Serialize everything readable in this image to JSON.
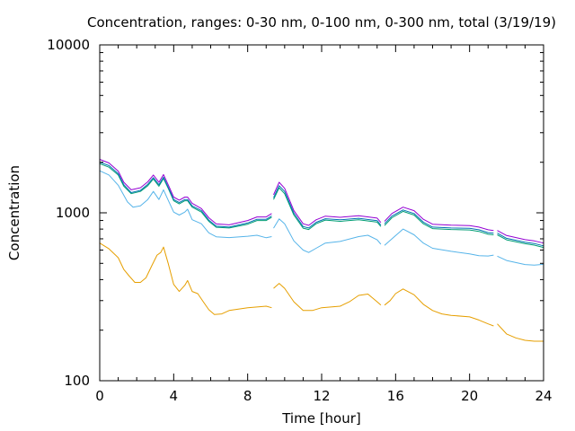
{
  "chart_data": {
    "type": "line",
    "title": "Concentration, ranges: 0-30 nm, 0-100 nm, 0-300 nm, total (3/19/19)",
    "xlabel": "Time [hour]",
    "ylabel": "Concentration",
    "xlim": [
      0,
      24
    ],
    "ylim": [
      100,
      10000
    ],
    "yscale": "log",
    "xticks": [
      0,
      4,
      8,
      12,
      16,
      20,
      24
    ],
    "yticks": [
      100,
      1000,
      10000
    ],
    "grid": false,
    "legend": "none",
    "series": [
      {
        "color": "#e69f00",
        "gaps_after_x": [
          9.3,
          15.2,
          21.3
        ],
        "points": [
          [
            0,
            660
          ],
          [
            0.5,
            610
          ],
          [
            1,
            540
          ],
          [
            1.3,
            460
          ],
          [
            1.6,
            420
          ],
          [
            1.9,
            385
          ],
          [
            2.2,
            385
          ],
          [
            2.5,
            410
          ],
          [
            2.8,
            480
          ],
          [
            3.1,
            560
          ],
          [
            3.3,
            580
          ],
          [
            3.45,
            625
          ],
          [
            3.7,
            500
          ],
          [
            4.0,
            375
          ],
          [
            4.3,
            340
          ],
          [
            4.6,
            370
          ],
          [
            4.75,
            395
          ],
          [
            5.0,
            340
          ],
          [
            5.3,
            330
          ],
          [
            5.6,
            295
          ],
          [
            5.9,
            265
          ],
          [
            6.2,
            248
          ],
          [
            6.6,
            250
          ],
          [
            7,
            262
          ],
          [
            8,
            272
          ],
          [
            9,
            278
          ],
          [
            9.3,
            272
          ],
          [
            9.4,
            355
          ],
          [
            9.7,
            380
          ],
          [
            10,
            355
          ],
          [
            10.5,
            295
          ],
          [
            11,
            262
          ],
          [
            11.5,
            262
          ],
          [
            12,
            272
          ],
          [
            13,
            278
          ],
          [
            13.5,
            295
          ],
          [
            14,
            322
          ],
          [
            14.5,
            328
          ],
          [
            15,
            295
          ],
          [
            15.2,
            282
          ],
          [
            15.4,
            282
          ],
          [
            15.7,
            300
          ],
          [
            16,
            330
          ],
          [
            16.4,
            352
          ],
          [
            17,
            325
          ],
          [
            17.5,
            285
          ],
          [
            18,
            262
          ],
          [
            18.5,
            250
          ],
          [
            19,
            245
          ],
          [
            20,
            240
          ],
          [
            20.5,
            230
          ],
          [
            21,
            218
          ],
          [
            21.3,
            212
          ],
          [
            21.5,
            218
          ],
          [
            22,
            190
          ],
          [
            22.5,
            180
          ],
          [
            23,
            174
          ],
          [
            23.5,
            172
          ],
          [
            24,
            172
          ]
        ]
      },
      {
        "color": "#56b4e9",
        "gaps_after_x": [
          9.3,
          15.2,
          21.3
        ],
        "points": [
          [
            0,
            1780
          ],
          [
            0.5,
            1680
          ],
          [
            1,
            1460
          ],
          [
            1.5,
            1160
          ],
          [
            1.8,
            1080
          ],
          [
            2.2,
            1100
          ],
          [
            2.6,
            1200
          ],
          [
            2.9,
            1340
          ],
          [
            3.2,
            1200
          ],
          [
            3.45,
            1370
          ],
          [
            3.7,
            1190
          ],
          [
            4.0,
            1010
          ],
          [
            4.3,
            970
          ],
          [
            4.6,
            1010
          ],
          [
            4.75,
            1050
          ],
          [
            5.0,
            910
          ],
          [
            5.5,
            860
          ],
          [
            5.9,
            760
          ],
          [
            6.3,
            720
          ],
          [
            7,
            712
          ],
          [
            8,
            725
          ],
          [
            8.5,
            735
          ],
          [
            9,
            710
          ],
          [
            9.3,
            722
          ],
          [
            9.4,
            810
          ],
          [
            9.7,
            920
          ],
          [
            10,
            860
          ],
          [
            10.5,
            680
          ],
          [
            11,
            600
          ],
          [
            11.3,
            580
          ],
          [
            11.7,
            615
          ],
          [
            12.2,
            660
          ],
          [
            13,
            675
          ],
          [
            14,
            722
          ],
          [
            14.5,
            735
          ],
          [
            15,
            690
          ],
          [
            15.2,
            650
          ],
          [
            15.4,
            640
          ],
          [
            15.8,
            700
          ],
          [
            16.4,
            800
          ],
          [
            17,
            740
          ],
          [
            17.5,
            660
          ],
          [
            18,
            615
          ],
          [
            19,
            590
          ],
          [
            20,
            570
          ],
          [
            20.5,
            555
          ],
          [
            21,
            553
          ],
          [
            21.3,
            560
          ],
          [
            21.5,
            552
          ],
          [
            22,
            520
          ],
          [
            23,
            492
          ],
          [
            23.5,
            488
          ],
          [
            24,
            493
          ]
        ]
      },
      {
        "color": "#009e73",
        "gaps_after_x": [
          9.3,
          15.2,
          21.3
        ],
        "points": [
          [
            0,
            1960
          ],
          [
            0.5,
            1870
          ],
          [
            1,
            1680
          ],
          [
            1.3,
            1440
          ],
          [
            1.7,
            1300
          ],
          [
            2.2,
            1340
          ],
          [
            2.6,
            1450
          ],
          [
            2.9,
            1590
          ],
          [
            3.2,
            1440
          ],
          [
            3.45,
            1600
          ],
          [
            3.7,
            1400
          ],
          [
            4.0,
            1180
          ],
          [
            4.3,
            1130
          ],
          [
            4.6,
            1180
          ],
          [
            4.75,
            1180
          ],
          [
            5.0,
            1080
          ],
          [
            5.5,
            1010
          ],
          [
            5.9,
            890
          ],
          [
            6.3,
            820
          ],
          [
            7,
            812
          ],
          [
            8,
            855
          ],
          [
            8.5,
            900
          ],
          [
            9,
            900
          ],
          [
            9.3,
            942
          ],
          [
            9.4,
            1200
          ],
          [
            9.7,
            1410
          ],
          [
            10,
            1300
          ],
          [
            10.5,
            970
          ],
          [
            11,
            810
          ],
          [
            11.3,
            795
          ],
          [
            11.7,
            860
          ],
          [
            12.2,
            905
          ],
          [
            13,
            890
          ],
          [
            14,
            910
          ],
          [
            15,
            880
          ],
          [
            15.2,
            828
          ],
          [
            15.4,
            840
          ],
          [
            15.8,
            935
          ],
          [
            16.4,
            1020
          ],
          [
            17,
            970
          ],
          [
            17.5,
            860
          ],
          [
            18,
            805
          ],
          [
            19,
            795
          ],
          [
            20,
            790
          ],
          [
            20.5,
            775
          ],
          [
            21,
            745
          ],
          [
            21.3,
            740
          ],
          [
            21.5,
            740
          ],
          [
            22,
            690
          ],
          [
            23,
            655
          ],
          [
            23.5,
            642
          ],
          [
            24,
            622
          ]
        ]
      },
      {
        "color": "#0072b2",
        "gaps_after_x": [
          9.3,
          15.2,
          21.3
        ],
        "points": [
          [
            0,
            2000
          ],
          [
            0.5,
            1910
          ],
          [
            1,
            1710
          ],
          [
            1.3,
            1470
          ],
          [
            1.7,
            1320
          ],
          [
            2.2,
            1360
          ],
          [
            2.6,
            1480
          ],
          [
            2.9,
            1620
          ],
          [
            3.2,
            1470
          ],
          [
            3.45,
            1630
          ],
          [
            3.7,
            1420
          ],
          [
            4.0,
            1200
          ],
          [
            4.3,
            1150
          ],
          [
            4.6,
            1200
          ],
          [
            4.75,
            1200
          ],
          [
            5.0,
            1100
          ],
          [
            5.5,
            1030
          ],
          [
            5.9,
            905
          ],
          [
            6.3,
            832
          ],
          [
            7,
            822
          ],
          [
            8,
            870
          ],
          [
            8.5,
            915
          ],
          [
            9,
            915
          ],
          [
            9.3,
            958
          ],
          [
            9.4,
            1230
          ],
          [
            9.7,
            1450
          ],
          [
            10,
            1340
          ],
          [
            10.5,
            995
          ],
          [
            11,
            828
          ],
          [
            11.3,
            812
          ],
          [
            11.7,
            878
          ],
          [
            12.2,
            922
          ],
          [
            13,
            908
          ],
          [
            14,
            928
          ],
          [
            15,
            898
          ],
          [
            15.2,
            845
          ],
          [
            15.4,
            860
          ],
          [
            15.8,
            955
          ],
          [
            16.4,
            1040
          ],
          [
            17,
            990
          ],
          [
            17.5,
            880
          ],
          [
            18,
            822
          ],
          [
            19,
            812
          ],
          [
            20,
            808
          ],
          [
            20.5,
            792
          ],
          [
            21,
            762
          ],
          [
            21.3,
            757
          ],
          [
            21.5,
            757
          ],
          [
            22,
            705
          ],
          [
            23,
            668
          ],
          [
            23.5,
            656
          ],
          [
            24,
            636
          ]
        ]
      },
      {
        "color": "#9400d3",
        "gaps_after_x": [
          9.3,
          15.2,
          21.3
        ],
        "points": [
          [
            0,
            2080
          ],
          [
            0.5,
            1980
          ],
          [
            1,
            1770
          ],
          [
            1.3,
            1520
          ],
          [
            1.7,
            1370
          ],
          [
            2.2,
            1410
          ],
          [
            2.6,
            1530
          ],
          [
            2.9,
            1680
          ],
          [
            3.2,
            1520
          ],
          [
            3.45,
            1690
          ],
          [
            3.7,
            1470
          ],
          [
            4.0,
            1240
          ],
          [
            4.3,
            1190
          ],
          [
            4.6,
            1240
          ],
          [
            4.75,
            1240
          ],
          [
            5.0,
            1140
          ],
          [
            5.5,
            1060
          ],
          [
            5.9,
            935
          ],
          [
            6.3,
            858
          ],
          [
            7,
            848
          ],
          [
            8,
            900
          ],
          [
            8.5,
            945
          ],
          [
            9,
            945
          ],
          [
            9.3,
            990
          ],
          [
            9.4,
            1280
          ],
          [
            9.7,
            1520
          ],
          [
            10,
            1400
          ],
          [
            10.5,
            1030
          ],
          [
            11,
            860
          ],
          [
            11.3,
            842
          ],
          [
            11.7,
            908
          ],
          [
            12.2,
            955
          ],
          [
            13,
            940
          ],
          [
            14,
            960
          ],
          [
            15,
            930
          ],
          [
            15.2,
            875
          ],
          [
            15.4,
            890
          ],
          [
            15.8,
            990
          ],
          [
            16.4,
            1080
          ],
          [
            17,
            1030
          ],
          [
            17.5,
            915
          ],
          [
            18,
            855
          ],
          [
            19,
            845
          ],
          [
            20,
            840
          ],
          [
            20.5,
            822
          ],
          [
            21,
            792
          ],
          [
            21.3,
            785
          ],
          [
            21.5,
            785
          ],
          [
            22,
            732
          ],
          [
            23,
            692
          ],
          [
            23.5,
            680
          ],
          [
            24,
            660
          ]
        ]
      }
    ]
  }
}
